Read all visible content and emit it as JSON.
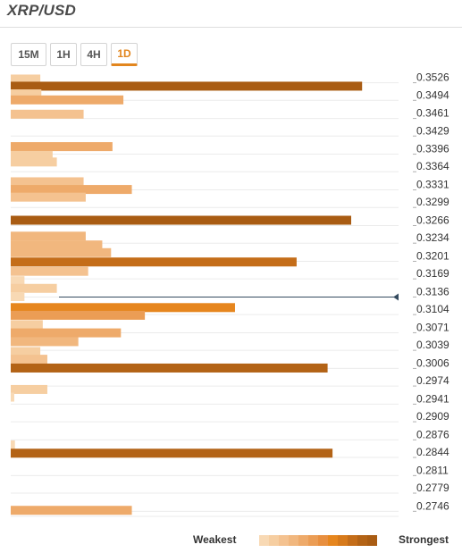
{
  "title": "XRP/USD",
  "tabs": [
    {
      "label": "15M",
      "active": false
    },
    {
      "label": "1H",
      "active": false
    },
    {
      "label": "4H",
      "active": false
    },
    {
      "label": "1D",
      "active": true
    }
  ],
  "legend": {
    "weak_label": "Weakest",
    "strong_label": "Strongest",
    "colors": [
      "#f8d9b4",
      "#f6cea1",
      "#f4c290",
      "#f1b77e",
      "#eeaa6a",
      "#eb9d55",
      "#e88f3f",
      "#e6861e",
      "#d77a1b",
      "#c46d19",
      "#b36316",
      "#a95c13"
    ]
  },
  "chart_data": {
    "type": "bar",
    "orientation": "horizontal",
    "price_labels": [
      "0.3526",
      "0.3494",
      "0.3461",
      "0.3429",
      "0.3396",
      "0.3364",
      "0.3331",
      "0.3299",
      "0.3266",
      "0.3234",
      "0.3201",
      "0.3169",
      "0.3136",
      "0.3104",
      "0.3071",
      "0.3039",
      "0.3006",
      "0.2974",
      "0.2941",
      "0.2909",
      "0.2876",
      "0.2844",
      "0.2811",
      "0.2779",
      "0.2746"
    ],
    "current_price": 0.3136,
    "price_range": [
      0.2727,
      0.354
    ],
    "max_strength": 100,
    "bars": [
      {
        "price": 0.3523,
        "value": 8.4,
        "level": 1
      },
      {
        "price": 0.351,
        "value": 99.8,
        "level": 11
      },
      {
        "price": 0.3496,
        "value": 8.7,
        "level": 1
      },
      {
        "price": 0.3485,
        "value": 32.0,
        "level": 4
      },
      {
        "price": 0.3459,
        "value": 20.7,
        "level": 2
      },
      {
        "price": 0.34,
        "value": 28.9,
        "level": 4
      },
      {
        "price": 0.3384,
        "value": 11.9,
        "level": 1
      },
      {
        "price": 0.3372,
        "value": 13.1,
        "level": 1
      },
      {
        "price": 0.3336,
        "value": 20.7,
        "level": 2
      },
      {
        "price": 0.3322,
        "value": 34.4,
        "level": 4
      },
      {
        "price": 0.3308,
        "value": 21.3,
        "level": 2
      },
      {
        "price": 0.3266,
        "value": 96.7,
        "level": 11
      },
      {
        "price": 0.3237,
        "value": 21.3,
        "level": 3
      },
      {
        "price": 0.3221,
        "value": 26.0,
        "level": 3
      },
      {
        "price": 0.3207,
        "value": 28.5,
        "level": 3
      },
      {
        "price": 0.319,
        "value": 81.2,
        "level": 9
      },
      {
        "price": 0.3173,
        "value": 22.0,
        "level": 2
      },
      {
        "price": 0.3156,
        "value": 3.9,
        "level": 0
      },
      {
        "price": 0.3142,
        "value": 13.1,
        "level": 1
      },
      {
        "price": 0.3127,
        "value": 3.9,
        "level": 0
      },
      {
        "price": 0.3107,
        "value": 63.7,
        "level": 7
      },
      {
        "price": 0.3093,
        "value": 38.1,
        "level": 5
      },
      {
        "price": 0.3076,
        "value": 9.1,
        "level": 1
      },
      {
        "price": 0.3061,
        "value": 31.3,
        "level": 4
      },
      {
        "price": 0.3045,
        "value": 19.2,
        "level": 3
      },
      {
        "price": 0.3027,
        "value": 8.4,
        "level": 1
      },
      {
        "price": 0.3013,
        "value": 10.4,
        "level": 2
      },
      {
        "price": 0.2997,
        "value": 90.0,
        "level": 10
      },
      {
        "price": 0.2958,
        "value": 10.4,
        "level": 1
      },
      {
        "price": 0.2944,
        "value": 1.0,
        "level": 0
      },
      {
        "price": 0.2857,
        "value": 1.2,
        "level": 0
      },
      {
        "price": 0.2842,
        "value": 91.4,
        "level": 10
      },
      {
        "price": 0.2738,
        "value": 34.4,
        "level": 4
      }
    ]
  }
}
